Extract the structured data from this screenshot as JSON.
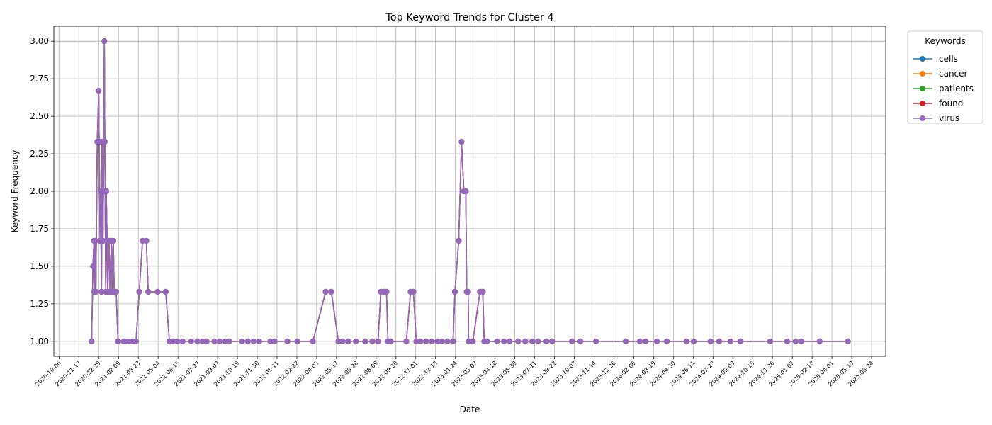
{
  "chart_data": {
    "type": "line",
    "title": "Top Keyword Trends for Cluster 4",
    "x_label": "Date",
    "y_label": "Keyword Frequency",
    "legend_title": "Keywords",
    "legend": "upper right outside",
    "grid": true,
    "x": [
      "2020-12-14",
      "2020-12-17",
      "2020-12-19",
      "2020-12-20",
      "2020-12-22",
      "2020-12-23",
      "2020-12-26",
      "2020-12-29",
      "2020-12-30",
      "2021-01-01",
      "2021-01-02",
      "2021-01-04",
      "2021-01-05",
      "2021-01-07",
      "2021-01-08",
      "2021-01-10",
      "2021-01-11",
      "2021-01-13",
      "2021-01-14",
      "2021-01-16",
      "2021-01-17",
      "2021-01-20",
      "2021-01-22",
      "2021-01-25",
      "2021-01-26",
      "2021-01-29",
      "2021-01-31",
      "2021-02-04",
      "2021-02-08",
      "2021-02-20",
      "2021-02-25",
      "2021-03-03",
      "2021-03-11",
      "2021-03-18",
      "2021-03-25",
      "2021-04-01",
      "2021-04-09",
      "2021-04-13",
      "2021-05-03",
      "2021-05-20",
      "2021-05-28",
      "2021-06-04",
      "2021-06-14",
      "2021-06-25",
      "2021-07-13",
      "2021-07-26",
      "2021-08-06",
      "2021-08-15",
      "2021-08-31",
      "2021-09-11",
      "2021-09-23",
      "2021-10-02",
      "2021-10-29",
      "2021-11-10",
      "2021-11-22",
      "2021-12-04",
      "2021-12-28",
      "2022-01-06",
      "2022-02-02",
      "2022-02-23",
      "2022-03-28",
      "2022-04-24",
      "2022-05-06",
      "2022-05-21",
      "2022-05-30",
      "2022-06-11",
      "2022-06-27",
      "2022-07-17",
      "2022-08-01",
      "2022-08-13",
      "2022-08-19",
      "2022-08-25",
      "2022-08-31",
      "2022-09-03",
      "2022-09-09",
      "2022-10-12",
      "2022-10-21",
      "2022-10-27",
      "2022-11-02",
      "2022-11-11",
      "2022-11-23",
      "2022-12-05",
      "2022-12-17",
      "2022-12-26",
      "2023-01-07",
      "2023-01-19",
      "2023-01-23",
      "2023-01-31",
      "2023-02-06",
      "2023-02-11",
      "2023-02-15",
      "2023-02-17",
      "2023-02-20",
      "2023-02-21",
      "2023-03-02",
      "2023-03-17",
      "2023-03-23",
      "2023-03-26",
      "2023-04-01",
      "2023-04-22",
      "2023-05-07",
      "2023-05-19",
      "2023-06-06",
      "2023-06-21",
      "2023-07-06",
      "2023-07-18",
      "2023-08-05",
      "2023-08-17",
      "2023-09-28",
      "2023-10-16",
      "2023-11-18",
      "2024-01-20",
      "2024-02-19",
      "2024-03-02",
      "2024-03-26",
      "2024-04-16",
      "2024-05-28",
      "2024-06-12",
      "2024-07-18",
      "2024-08-05",
      "2024-08-29",
      "2024-09-19",
      "2024-11-21",
      "2024-12-27",
      "2025-01-14",
      "2025-01-26",
      "2025-03-06",
      "2025-05-05"
    ],
    "series": [
      {
        "name": "cells",
        "color": "#1f77b4",
        "values": [
          1,
          1.5,
          1.67,
          1.33,
          1.67,
          1.33,
          2.33,
          2.67,
          2.33,
          1.67,
          2,
          1.33,
          2.33,
          1.67,
          2,
          3,
          2.33,
          1.33,
          2,
          1.67,
          1.33,
          1.67,
          1.33,
          1.67,
          1.33,
          1.67,
          1.33,
          1.33,
          1,
          1,
          1,
          1,
          1,
          1,
          1.33,
          1.67,
          1.67,
          1.33,
          1.33,
          1.33,
          1,
          1,
          1,
          1,
          1,
          1,
          1,
          1,
          1,
          1,
          1,
          1,
          1,
          1,
          1,
          1,
          1,
          1,
          1,
          1,
          1,
          1.33,
          1.33,
          1,
          1,
          1,
          1,
          1,
          1,
          1,
          1.33,
          1.33,
          1.33,
          1,
          1,
          1,
          1.33,
          1.33,
          1,
          1,
          1,
          1,
          1,
          1,
          1,
          1,
          1.33,
          1.67,
          2.33,
          2,
          2,
          1.33,
          1.33,
          1,
          1,
          1.33,
          1.33,
          1,
          1,
          1,
          1,
          1,
          1,
          1,
          1,
          1,
          1,
          1,
          1,
          1,
          1,
          1,
          1,
          1,
          1,
          1,
          1,
          1,
          1,
          1,
          1,
          1,
          1,
          1,
          1,
          1,
          1,
          1
        ]
      },
      {
        "name": "cancer",
        "color": "#ff7f0e",
        "values": [
          1,
          1.5,
          1.67,
          1.33,
          1.67,
          1.33,
          2.33,
          2.67,
          2.33,
          1.67,
          2,
          1.33,
          2.33,
          1.67,
          2,
          3,
          2.33,
          1.33,
          2,
          1.67,
          1.33,
          1.67,
          1.33,
          1.67,
          1.33,
          1.67,
          1.33,
          1.33,
          1,
          1,
          1,
          1,
          1,
          1,
          1.33,
          1.67,
          1.67,
          1.33,
          1.33,
          1.33,
          1,
          1,
          1,
          1,
          1,
          1,
          1,
          1,
          1,
          1,
          1,
          1,
          1,
          1,
          1,
          1,
          1,
          1,
          1,
          1,
          1,
          1.33,
          1.33,
          1,
          1,
          1,
          1,
          1,
          1,
          1,
          1.33,
          1.33,
          1.33,
          1,
          1,
          1,
          1.33,
          1.33,
          1,
          1,
          1,
          1,
          1,
          1,
          1,
          1,
          1.33,
          1.67,
          2.33,
          2,
          2,
          1.33,
          1.33,
          1,
          1,
          1.33,
          1.33,
          1,
          1,
          1,
          1,
          1,
          1,
          1,
          1,
          1,
          1,
          1,
          1,
          1,
          1,
          1,
          1,
          1,
          1,
          1,
          1,
          1,
          1,
          1,
          1,
          1,
          1,
          1,
          1,
          1,
          1,
          1
        ]
      },
      {
        "name": "patients",
        "color": "#2ca02c",
        "values": [
          1,
          1.5,
          1.67,
          1.33,
          1.67,
          1.33,
          2.33,
          2.67,
          2.33,
          1.67,
          2,
          1.33,
          2.33,
          1.67,
          2,
          3,
          2.33,
          1.33,
          2,
          1.67,
          1.33,
          1.67,
          1.33,
          1.67,
          1.33,
          1.67,
          1.33,
          1.33,
          1,
          1,
          1,
          1,
          1,
          1,
          1.33,
          1.67,
          1.67,
          1.33,
          1.33,
          1.33,
          1,
          1,
          1,
          1,
          1,
          1,
          1,
          1,
          1,
          1,
          1,
          1,
          1,
          1,
          1,
          1,
          1,
          1,
          1,
          1,
          1,
          1.33,
          1.33,
          1,
          1,
          1,
          1,
          1,
          1,
          1,
          1.33,
          1.33,
          1.33,
          1,
          1,
          1,
          1.33,
          1.33,
          1,
          1,
          1,
          1,
          1,
          1,
          1,
          1,
          1.33,
          1.67,
          2.33,
          2,
          2,
          1.33,
          1.33,
          1,
          1,
          1.33,
          1.33,
          1,
          1,
          1,
          1,
          1,
          1,
          1,
          1,
          1,
          1,
          1,
          1,
          1,
          1,
          1,
          1,
          1,
          1,
          1,
          1,
          1,
          1,
          1,
          1,
          1,
          1,
          1,
          1,
          1,
          1,
          1
        ]
      },
      {
        "name": "found",
        "color": "#d62728",
        "values": [
          1,
          1.5,
          1.67,
          1.33,
          1.67,
          1.33,
          2.33,
          2.67,
          2.33,
          1.67,
          2,
          1.33,
          2.33,
          1.67,
          2,
          3,
          2.33,
          1.33,
          2,
          1.67,
          1.33,
          1.67,
          1.33,
          1.67,
          1.33,
          1.67,
          1.33,
          1.33,
          1,
          1,
          1,
          1,
          1,
          1,
          1.33,
          1.67,
          1.67,
          1.33,
          1.33,
          1.33,
          1,
          1,
          1,
          1,
          1,
          1,
          1,
          1,
          1,
          1,
          1,
          1,
          1,
          1,
          1,
          1,
          1,
          1,
          1,
          1,
          1,
          1.33,
          1.33,
          1,
          1,
          1,
          1,
          1,
          1,
          1,
          1.33,
          1.33,
          1.33,
          1,
          1,
          1,
          1.33,
          1.33,
          1,
          1,
          1,
          1,
          1,
          1,
          1,
          1,
          1.33,
          1.67,
          2.33,
          2,
          2,
          1.33,
          1.33,
          1,
          1,
          1.33,
          1.33,
          1,
          1,
          1,
          1,
          1,
          1,
          1,
          1,
          1,
          1,
          1,
          1,
          1,
          1,
          1,
          1,
          1,
          1,
          1,
          1,
          1,
          1,
          1,
          1,
          1,
          1,
          1,
          1,
          1,
          1,
          1
        ]
      },
      {
        "name": "virus",
        "color": "#9467bd",
        "values": [
          1,
          1.5,
          1.67,
          1.33,
          1.67,
          1.33,
          2.33,
          2.67,
          2.33,
          1.67,
          2,
          1.33,
          2.33,
          1.67,
          2,
          3,
          2.33,
          1.33,
          2,
          1.67,
          1.33,
          1.67,
          1.33,
          1.67,
          1.33,
          1.67,
          1.33,
          1.33,
          1,
          1,
          1,
          1,
          1,
          1,
          1.33,
          1.67,
          1.67,
          1.33,
          1.33,
          1.33,
          1,
          1,
          1,
          1,
          1,
          1,
          1,
          1,
          1,
          1,
          1,
          1,
          1,
          1,
          1,
          1,
          1,
          1,
          1,
          1,
          1,
          1.33,
          1.33,
          1,
          1,
          1,
          1,
          1,
          1,
          1,
          1.33,
          1.33,
          1.33,
          1,
          1,
          1,
          1.33,
          1.33,
          1,
          1,
          1,
          1,
          1,
          1,
          1,
          1,
          1.33,
          1.67,
          2.33,
          2,
          2,
          1.33,
          1.33,
          1,
          1,
          1.33,
          1.33,
          1,
          1,
          1,
          1,
          1,
          1,
          1,
          1,
          1,
          1,
          1,
          1,
          1,
          1,
          1,
          1,
          1,
          1,
          1,
          1,
          1,
          1,
          1,
          1,
          1,
          1,
          1,
          1,
          1,
          1,
          1
        ]
      }
    ],
    "xlim": [
      "2020-09-25",
      "2025-07-24"
    ],
    "xticks": [
      "2020-10-06",
      "2020-11-17",
      "2020-12-29",
      "2021-02-09",
      "2021-03-23",
      "2021-05-04",
      "2021-06-15",
      "2021-07-27",
      "2021-09-07",
      "2021-10-19",
      "2021-11-30",
      "2022-01-11",
      "2022-02-22",
      "2022-04-05",
      "2022-05-17",
      "2022-06-28",
      "2022-08-09",
      "2022-09-20",
      "2022-11-01",
      "2022-12-13",
      "2023-01-24",
      "2023-03-07",
      "2023-04-18",
      "2023-05-30",
      "2023-07-11",
      "2023-08-22",
      "2023-10-03",
      "2023-11-14",
      "2023-12-26",
      "2024-02-06",
      "2024-03-19",
      "2024-04-30",
      "2024-06-11",
      "2024-07-23",
      "2024-09-03",
      "2024-10-15",
      "2024-11-26",
      "2025-01-07",
      "2025-02-18",
      "2025-04-01",
      "2025-05-13",
      "2025-06-24"
    ],
    "ylim": [
      0.9,
      3.1
    ],
    "yticks": [
      {
        "value": 1,
        "label": "1.00"
      },
      {
        "value": 1.25,
        "label": "1.25"
      },
      {
        "value": 1.5,
        "label": "1.50"
      },
      {
        "value": 1.75,
        "label": "1.75"
      },
      {
        "value": 2,
        "label": "2.00"
      },
      {
        "value": 2.25,
        "label": "2.25"
      },
      {
        "value": 2.5,
        "label": "2.50"
      },
      {
        "value": 2.75,
        "label": "2.75"
      },
      {
        "value": 3,
        "label": "3.00"
      }
    ]
  }
}
